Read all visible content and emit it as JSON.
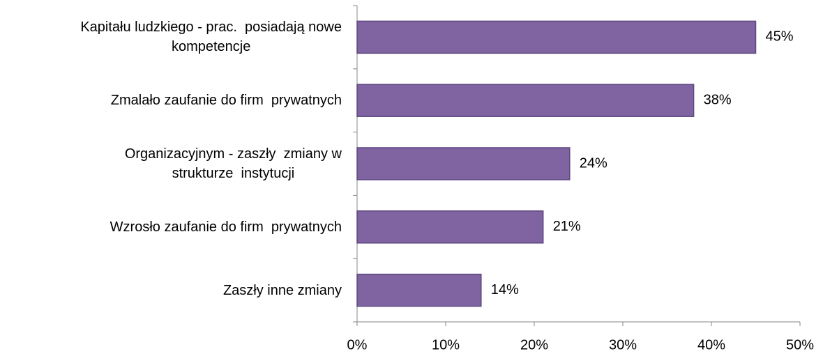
{
  "chart_data": {
    "type": "bar",
    "orientation": "horizontal",
    "categories": [
      "Kapitału ludzkiego - prac.  posiadają nowe\nkompetencje",
      "Zmalało zaufanie do firm  prywatnych",
      "Organizacyjnym - zaszły  zmiany w\nstrukturze  instytucji",
      "Wzrosło zaufanie do firm  prywatnych",
      "Zaszły inne zmiany"
    ],
    "values": [
      45,
      38,
      24,
      21,
      14
    ],
    "value_labels": [
      "45%",
      "38%",
      "24%",
      "21%",
      "14%"
    ],
    "color": "#8064a2",
    "xlim": [
      0,
      50
    ],
    "xticks": [
      {
        "value": 0,
        "label": "0%"
      },
      {
        "value": 10,
        "label": "10%"
      },
      {
        "value": 20,
        "label": "20%"
      },
      {
        "value": 30,
        "label": "30%"
      },
      {
        "value": 40,
        "label": "40%"
      },
      {
        "value": 50,
        "label": "50%"
      }
    ],
    "grid": false
  }
}
